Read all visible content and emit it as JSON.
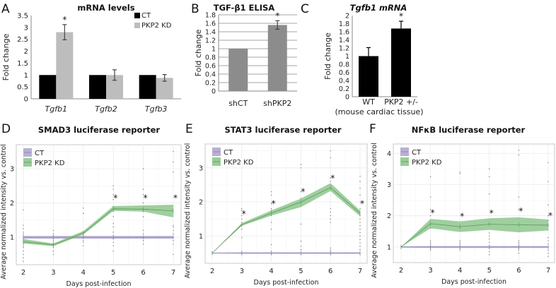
{
  "figure": {
    "panels": [
      "A",
      "B",
      "C",
      "D",
      "E",
      "F"
    ]
  },
  "chart_data": [
    {
      "panel": "A",
      "type": "bar",
      "title": "mRNA levels",
      "xlabel": "",
      "ylabel": "Fold change",
      "ylim": [
        0,
        3.5
      ],
      "yticks": [
        "0",
        "0.5",
        "1",
        "1.5",
        "2",
        "2.5",
        "3",
        "3.5"
      ],
      "categories": [
        "Tgfb1",
        "Tgfb2",
        "Tgfb3"
      ],
      "categories_italic": true,
      "legend": "top-right",
      "series": [
        {
          "name": "CT",
          "color": "#000000",
          "values": [
            1.0,
            1.0,
            1.0
          ],
          "errors": [
            0.01,
            0.01,
            0.01
          ]
        },
        {
          "name": "PKP2 KD",
          "color": "#bdbdbd",
          "values": [
            2.8,
            1.0,
            0.88
          ],
          "errors": [
            0.32,
            0.22,
            0.14
          ]
        }
      ],
      "significance": [
        {
          "category": "Tgfb1",
          "series": "PKP2 KD",
          "mark": "*"
        }
      ],
      "grid": false
    },
    {
      "panel": "B",
      "type": "bar",
      "title": "TGF-β1 ELISA",
      "xlabel": "",
      "ylabel": "Fold change",
      "ylim": [
        0,
        1.8
      ],
      "yticks": [
        "0",
        "0.2",
        "0.4",
        "0.6",
        "0.8",
        "1",
        "1.2",
        "1.4",
        "1.6",
        "1.8"
      ],
      "categories": [
        "shCT",
        "shPKP2"
      ],
      "series": [
        {
          "name": "Fold change",
          "color": "#8c8c8c",
          "values": [
            1.0,
            1.56
          ],
          "errors": [
            0.005,
            0.1
          ]
        }
      ],
      "significance": [
        {
          "category": "shPKP2",
          "mark": "*"
        }
      ],
      "grid": true
    },
    {
      "panel": "C",
      "type": "bar",
      "title": "Tgfb1 mRNA",
      "title_italic": true,
      "xlabel": "(mouse cardiac tissue)",
      "ylabel": "Fold change",
      "ylim": [
        0,
        2
      ],
      "yticks": [
        "0",
        "0.2",
        "0.4",
        "0.6",
        "0.8",
        "1",
        "1.2",
        "1.4",
        "1.6",
        "1.8",
        "2"
      ],
      "categories": [
        "WT",
        "PKP2 +/-"
      ],
      "series": [
        {
          "name": "Fold change",
          "color": "#000000",
          "values": [
            1.0,
            1.68
          ],
          "errors": [
            0.21,
            0.18
          ]
        }
      ],
      "significance": [
        {
          "category": "PKP2 +/-",
          "mark": "*"
        }
      ],
      "grid": false
    },
    {
      "panel": "D",
      "type": "line",
      "title": "SMAD3 luciferase reporter",
      "xlabel": "Days post-infection",
      "ylabel": "Average normalized intensity vs. control",
      "x": [
        2,
        3,
        4,
        5,
        6,
        7
      ],
      "xlim": [
        2,
        7
      ],
      "ylim": [
        0.2,
        3.7
      ],
      "yticks": [
        1,
        2,
        3
      ],
      "legend": "top-left",
      "grid": true,
      "series": [
        {
          "name": "CT",
          "color": "#a89cc8",
          "values": [
            1.0,
            1.0,
            1.0,
            1.0,
            1.0,
            1.0
          ],
          "lower": [
            0.96,
            0.96,
            0.96,
            0.96,
            0.96,
            0.96
          ],
          "upper": [
            1.04,
            1.04,
            1.04,
            1.04,
            1.04,
            1.04
          ]
        },
        {
          "name": "PKP2 KD",
          "color": "#7fbf7f",
          "values": [
            0.87,
            0.78,
            1.12,
            1.83,
            1.82,
            1.77
          ],
          "lower": [
            0.82,
            0.74,
            1.08,
            1.77,
            1.75,
            1.58
          ],
          "upper": [
            0.95,
            0.82,
            1.18,
            1.91,
            1.93,
            1.95
          ]
        }
      ],
      "significance_x": [
        5,
        6,
        7
      ],
      "significance_y": 2.15,
      "scatter_points": {
        "2": [
          0.3,
          0.4,
          0.5,
          0.6,
          0.7,
          0.75,
          0.8,
          0.85,
          0.9,
          0.95,
          1.0,
          1.05,
          1.1,
          1.15,
          1.25,
          1.35,
          1.8
        ],
        "3": [
          0.5,
          0.6,
          0.7,
          0.75,
          0.8,
          0.85,
          0.9,
          0.95,
          1.0,
          1.05,
          1.1,
          1.2
        ],
        "4": [
          0.75,
          0.85,
          0.9,
          1.0,
          1.05,
          1.1,
          1.15,
          1.7,
          1.85
        ],
        "5": [
          0.6,
          0.75,
          0.85,
          0.95,
          1.0,
          1.05,
          1.15,
          1.3,
          1.4,
          1.6,
          1.75,
          1.9,
          2.1,
          2.25,
          2.4,
          2.5
        ],
        "6": [
          0.8,
          0.9,
          1.0,
          1.1,
          1.2,
          1.6,
          1.75,
          1.85,
          2.0,
          2.25,
          2.4,
          3.0
        ],
        "7": [
          0.5,
          0.8,
          0.9,
          1.0,
          1.1,
          1.2,
          1.3,
          1.35,
          2.9,
          3.2,
          3.5
        ]
      }
    },
    {
      "panel": "E",
      "type": "line",
      "title": "STAT3 luciferase reporter",
      "xlabel": "Days post-infection",
      "ylabel": "Average normalized intensity vs. control",
      "x": [
        2,
        3,
        4,
        5,
        6,
        7
      ],
      "xlim": [
        2,
        7
      ],
      "ylim": [
        0.2,
        3.7
      ],
      "yticks": [
        1,
        2,
        3
      ],
      "legend": "top-left",
      "grid": true,
      "series": [
        {
          "name": "CT",
          "color": "#a89cc8",
          "values": [
            0.5,
            0.5,
            0.5,
            0.5,
            0.5,
            0.5
          ],
          "lower": [
            0.49,
            0.48,
            0.48,
            0.48,
            0.48,
            0.48
          ],
          "upper": [
            0.51,
            0.52,
            0.52,
            0.52,
            0.52,
            0.52
          ]
        },
        {
          "name": "PKP2 KD",
          "color": "#7fbf7f",
          "values": [
            0.5,
            1.33,
            1.67,
            2.0,
            2.42,
            1.67
          ],
          "lower": [
            0.5,
            1.3,
            1.6,
            1.85,
            2.32,
            1.58
          ],
          "upper": [
            0.5,
            1.38,
            1.75,
            2.1,
            2.55,
            1.75
          ]
        }
      ],
      "significance_x": [
        3,
        4,
        5,
        6,
        7
      ],
      "significance_y": [
        1.65,
        1.95,
        2.3,
        2.7,
        1.95
      ],
      "scatter_points": {
        "3": [
          0.45,
          0.5,
          0.55,
          0.95,
          1.2,
          1.3,
          1.4,
          1.5,
          1.6,
          1.75,
          1.8
        ],
        "4": [
          0.45,
          0.5,
          0.55,
          0.75,
          1.2,
          1.4,
          1.6,
          1.75,
          1.8,
          1.95,
          2.2,
          2.3
        ],
        "5": [
          0.45,
          0.5,
          0.6,
          0.7,
          0.85,
          1.35,
          1.9,
          2.0,
          2.1,
          2.3,
          3.0,
          3.1
        ],
        "6": [
          0.45,
          0.5,
          0.55,
          0.6,
          0.65,
          1.4,
          1.5,
          1.6,
          1.7,
          1.8,
          2.4,
          2.6,
          2.7,
          3.3,
          3.5
        ],
        "7": [
          0.45,
          0.5,
          0.6,
          0.7,
          0.8,
          0.9,
          1.0,
          1.1,
          1.2,
          1.3,
          1.4,
          1.5,
          1.6,
          1.8,
          2.2,
          2.4,
          2.6,
          2.75
        ]
      }
    },
    {
      "panel": "F",
      "type": "line",
      "title": "NFκB luciferase reporter",
      "xlabel": "Days post-infection",
      "ylabel": "Average normalized intensity vs. control",
      "x": [
        2,
        3,
        4,
        5,
        6,
        7
      ],
      "xlim": [
        2,
        7
      ],
      "ylim": [
        0.5,
        4.3
      ],
      "yticks": [
        1,
        2,
        3,
        4
      ],
      "legend": "top-left",
      "grid": true,
      "series": [
        {
          "name": "CT",
          "color": "#a89cc8",
          "values": [
            1.0,
            1.0,
            1.0,
            1.0,
            1.0,
            1.0
          ],
          "lower": [
            0.98,
            0.97,
            0.97,
            0.97,
            0.97,
            0.97
          ],
          "upper": [
            1.02,
            1.03,
            1.03,
            1.03,
            1.03,
            1.03
          ]
        },
        {
          "name": "PKP2 KD",
          "color": "#7fbf7f",
          "values": [
            1.0,
            1.75,
            1.65,
            1.73,
            1.71,
            1.7
          ],
          "lower": [
            1.0,
            1.6,
            1.48,
            1.55,
            1.47,
            1.53
          ],
          "upper": [
            1.0,
            1.9,
            1.82,
            1.92,
            1.95,
            1.88
          ]
        }
      ],
      "significance_x": [
        3,
        4,
        5,
        6,
        7
      ],
      "significance_y": [
        2.1,
        1.98,
        2.08,
        2.15,
        2.0
      ],
      "scatter_points": {
        "3": [
          0.9,
          0.95,
          1.0,
          1.05,
          1.1,
          1.15,
          1.2,
          1.6,
          1.7,
          2.0,
          2.2,
          2.6,
          3.25
        ],
        "4": [
          0.9,
          0.95,
          1.0,
          1.05,
          1.1,
          1.15,
          1.2,
          1.6,
          1.65,
          3.35,
          3.4
        ],
        "5": [
          0.75,
          0.85,
          0.95,
          1.05,
          1.15,
          1.25,
          1.35,
          1.45,
          2.7,
          3.25,
          3.5
        ],
        "6": [
          0.8,
          0.9,
          0.95,
          1.0,
          1.05,
          1.1,
          1.15,
          1.2,
          2.2,
          2.6,
          3.95,
          4.1
        ],
        "7": [
          0.7,
          0.8,
          0.9,
          1.0,
          1.1,
          1.2,
          1.3,
          1.55,
          1.7,
          1.85,
          2.0,
          2.35,
          3.1,
          3.7
        ]
      }
    }
  ]
}
